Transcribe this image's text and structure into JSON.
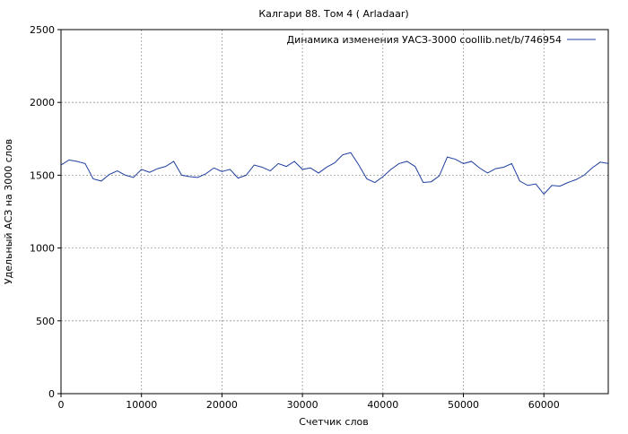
{
  "chart_data": {
    "type": "line",
    "title": "Калгари 88. Том 4 ( Arladaar)",
    "x_label": "Счетчик слов",
    "y_label": "Удельный АСЗ на 3000 слов",
    "x": [
      0,
      1000,
      2000,
      3000,
      4000,
      5000,
      6000,
      7000,
      8000,
      9000,
      10000,
      11000,
      12000,
      13000,
      14000,
      15000,
      16000,
      17000,
      18000,
      19000,
      20000,
      21000,
      22000,
      23000,
      24000,
      25000,
      26000,
      27000,
      28000,
      29000,
      30000,
      31000,
      32000,
      33000,
      34000,
      35000,
      36000,
      37000,
      38000,
      39000,
      40000,
      41000,
      42000,
      43000,
      44000,
      45000,
      46000,
      47000,
      48000,
      49000,
      50000,
      51000,
      52000,
      53000,
      54000,
      55000,
      56000,
      57000,
      58000,
      59000,
      60000,
      61000,
      62000,
      63000,
      64000,
      65000,
      66000,
      67000,
      68000
    ],
    "series": [
      {
        "name": "Динамика изменения УАСЗ-3000 coollib.net/b/746954",
        "color": "#1f3f9f",
        "values": [
          1570,
          1605,
          1595,
          1580,
          1475,
          1460,
          1505,
          1530,
          1500,
          1485,
          1540,
          1520,
          1545,
          1560,
          1595,
          1500,
          1490,
          1485,
          1510,
          1550,
          1525,
          1540,
          1480,
          1500,
          1570,
          1555,
          1530,
          1580,
          1560,
          1595,
          1540,
          1550,
          1515,
          1555,
          1585,
          1640,
          1655,
          1570,
          1475,
          1450,
          1490,
          1540,
          1580,
          1595,
          1560,
          1450,
          1455,
          1495,
          1625,
          1610,
          1580,
          1595,
          1550,
          1515,
          1545,
          1555,
          1580,
          1460,
          1430,
          1440,
          1370,
          1430,
          1425,
          1450,
          1470,
          1500,
          1550,
          1590,
          1580
        ]
      }
    ],
    "xlim": [
      0,
      68000
    ],
    "ylim": [
      0,
      2500
    ],
    "xticks": [
      0,
      10000,
      20000,
      30000,
      40000,
      50000,
      60000
    ],
    "yticks": [
      0,
      500,
      1000,
      1500,
      2000,
      2500
    ],
    "grid": true,
    "legend": "upper right"
  }
}
